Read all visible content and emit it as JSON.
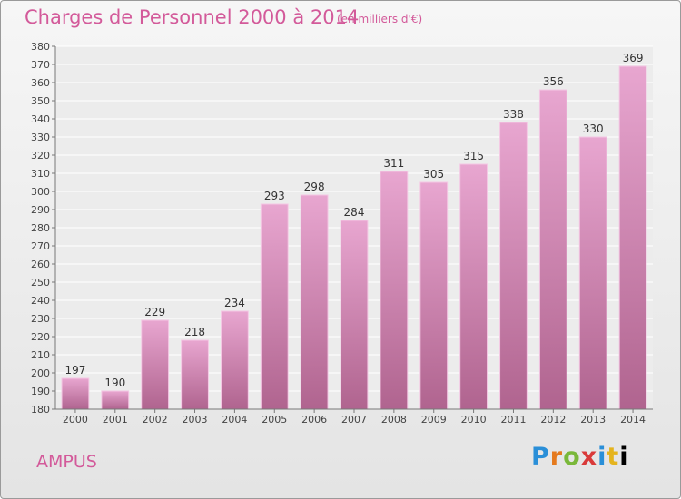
{
  "header": {
    "title": "Charges de Personnel 2000 à 2014",
    "subtitle": "(en milliers d'€)"
  },
  "footer": {
    "place": "AMPUS",
    "logo": "Proxiti"
  },
  "colors": {
    "accent": "#d35a9a",
    "bar_top": "#e8a6d0",
    "bar_bottom": "#b0648f",
    "bar_edge": "#f4c8e4"
  },
  "chart_data": {
    "type": "bar",
    "title": "Charges de Personnel 2000 à 2014",
    "subtitle": "(en milliers d'€)",
    "categories": [
      "2000",
      "2001",
      "2002",
      "2003",
      "2004",
      "2005",
      "2006",
      "2007",
      "2008",
      "2009",
      "2010",
      "2011",
      "2012",
      "2013",
      "2014"
    ],
    "values": [
      197,
      190,
      229,
      218,
      234,
      293,
      298,
      284,
      311,
      305,
      315,
      338,
      356,
      330,
      369
    ],
    "ylim": [
      180,
      380
    ],
    "ytick_step": 10,
    "grid": true,
    "xlabel": "",
    "ylabel": ""
  }
}
